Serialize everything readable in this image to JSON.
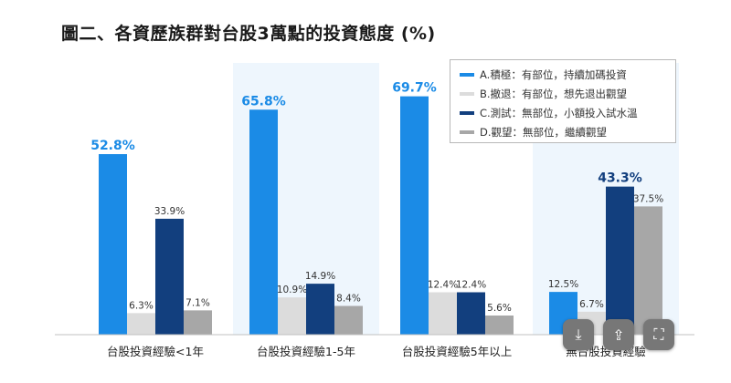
{
  "title": "圖二、各資歷族群對台股3萬點的投資態度 (%)",
  "colors": {
    "highlight_panel": "#eef6fd",
    "axis": "#c0c0c0"
  },
  "chart_data": {
    "type": "bar",
    "title": "圖二、各資歷族群對台股3萬點的投資態度 (%)",
    "categories": [
      "台股投資經驗<1年",
      "台股投資經驗1-5年",
      "台股投資經驗5年以上",
      "無台股投資經驗"
    ],
    "highlighted_categories": [
      1,
      3
    ],
    "ylim": [
      0,
      80
    ],
    "grid": false,
    "legend_position": "top-right",
    "series": [
      {
        "name": "A.積極：有部位，持續加碼投資",
        "color": "#1b8be6",
        "values": [
          52.8,
          65.8,
          69.7,
          12.5
        ],
        "labels": [
          "52.8%",
          "65.8%",
          "69.7%",
          "12.5%"
        ]
      },
      {
        "name": "B.撤退：有部位，想先退出觀望",
        "color": "#dcdcdc",
        "values": [
          6.3,
          10.9,
          12.4,
          6.7
        ],
        "labels": [
          "6.3%",
          "10.9%",
          "12.4%",
          "6.7%"
        ]
      },
      {
        "name": "C.測試：無部位，小額投入試水溫",
        "color": "#123f7e",
        "values": [
          33.9,
          14.9,
          12.4,
          43.3
        ],
        "labels": [
          "33.9%",
          "14.9%",
          "12.4%",
          "43.3%"
        ]
      },
      {
        "name": "D.觀望：無部位，繼續觀望",
        "color": "#a7a7a7",
        "values": [
          7.1,
          8.4,
          5.6,
          37.5
        ],
        "labels": [
          "7.1%",
          "8.4%",
          "5.6%",
          "37.5%"
        ]
      }
    ]
  },
  "overlay": [
    {
      "icon": "download-icon",
      "glyph": "⤓"
    },
    {
      "icon": "share-icon",
      "glyph": "⇪"
    },
    {
      "icon": "expand-icon",
      "glyph": "⛶"
    }
  ]
}
